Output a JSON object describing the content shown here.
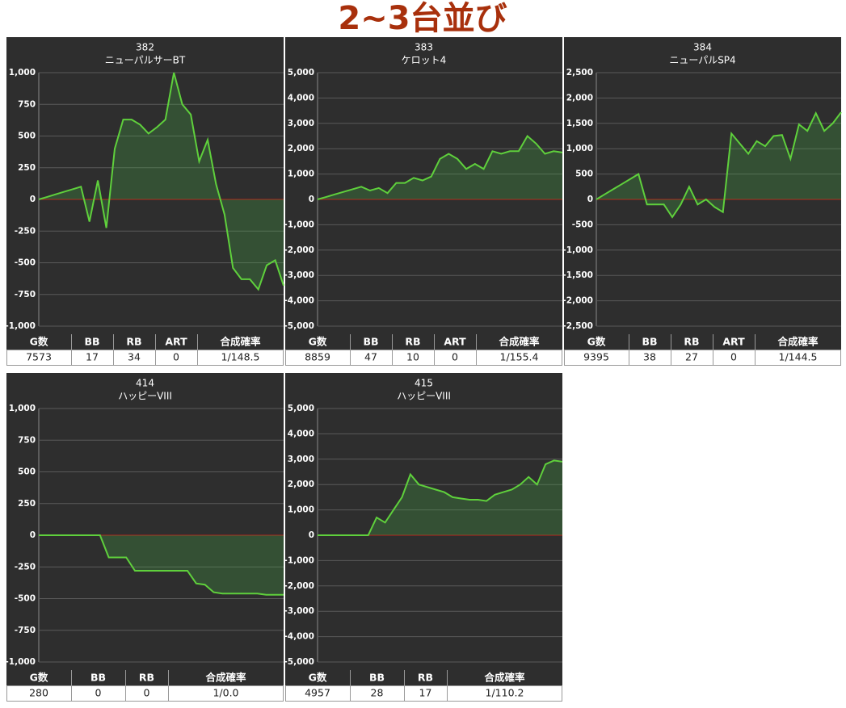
{
  "title": "2~3台並び",
  "chart_data": [
    {
      "type": "line",
      "title": "382",
      "subtitle": "ニューパルサーBT",
      "color": "#5fd03c",
      "values": [
        0,
        20,
        40,
        60,
        80,
        100,
        -175,
        150,
        -225,
        400,
        630,
        630,
        590,
        520,
        570,
        630,
        1000,
        750,
        670,
        300,
        470,
        120,
        -120,
        -540,
        -630,
        -630,
        -710,
        -520,
        -480,
        -680
      ],
      "ylim": [
        -1000,
        1000
      ],
      "yticks": [
        {
          "value": -1000,
          "label": "-1,000"
        },
        -750,
        -500,
        -250,
        0,
        250,
        500,
        750,
        {
          "value": 1000,
          "label": "1,000"
        }
      ]
    },
    {
      "type": "line",
      "title": "383",
      "subtitle": "ケロット4",
      "color": "#5fd03c",
      "values": [
        0,
        100,
        200,
        300,
        400,
        500,
        350,
        450,
        250,
        650,
        650,
        850,
        750,
        900,
        1600,
        1800,
        1600,
        1200,
        1400,
        1200,
        1900,
        1800,
        1900,
        1900,
        2500,
        2200,
        1800,
        1900,
        1850
      ],
      "ylim": [
        -5000,
        5000
      ],
      "yticks": [
        {
          "value": -5000,
          "label": "-5,000"
        },
        {
          "value": -4000,
          "label": "-4,000"
        },
        {
          "value": -3000,
          "label": "-3,000"
        },
        {
          "value": -2000,
          "label": "-2,000"
        },
        {
          "value": -1000,
          "label": "-1,000"
        },
        0,
        {
          "value": 1000,
          "label": "1,000"
        },
        {
          "value": 2000,
          "label": "2,000"
        },
        {
          "value": 3000,
          "label": "3,000"
        },
        {
          "value": 4000,
          "label": "4,000"
        },
        {
          "value": 5000,
          "label": "5,000"
        }
      ]
    },
    {
      "type": "line",
      "title": "384",
      "subtitle": "ニューパルSP4",
      "color": "#5fd03c",
      "values": [
        0,
        100,
        200,
        300,
        400,
        500,
        -100,
        -100,
        -100,
        -350,
        -100,
        250,
        -100,
        0,
        -150,
        -250,
        1300,
        1100,
        900,
        1150,
        1050,
        1250,
        1270,
        800,
        1480,
        1350,
        1700,
        1350,
        1500,
        1720
      ],
      "ylim": [
        -2500,
        2500
      ],
      "yticks": [
        {
          "value": -2500,
          "label": "-2,500"
        },
        {
          "value": -2000,
          "label": "-2,000"
        },
        {
          "value": -1500,
          "label": "-1,500"
        },
        {
          "value": -1000,
          "label": "-1,000"
        },
        -500,
        0,
        500,
        {
          "value": 1000,
          "label": "1,000"
        },
        {
          "value": 1500,
          "label": "1,500"
        },
        {
          "value": 2000,
          "label": "2,000"
        },
        {
          "value": 2500,
          "label": "2,500"
        }
      ]
    },
    {
      "type": "line",
      "title": "414",
      "subtitle": "ハッピーVIII",
      "color": "#5fd03c",
      "values": [
        0,
        0,
        0,
        0,
        0,
        0,
        0,
        0,
        -175,
        -175,
        -175,
        -280,
        -280,
        -280,
        -280,
        -280,
        -280,
        -280,
        -380,
        -390,
        -450,
        -460,
        -460,
        -460,
        -460,
        -460,
        -470,
        -470,
        -470
      ],
      "ylim": [
        -1000,
        1000
      ],
      "yticks": [
        {
          "value": -1000,
          "label": "-1,000"
        },
        -750,
        -500,
        -250,
        0,
        250,
        500,
        750,
        {
          "value": 1000,
          "label": "1,000"
        }
      ]
    },
    {
      "type": "line",
      "title": "415",
      "subtitle": "ハッピーVIII",
      "color": "#5fd03c",
      "values": [
        0,
        0,
        0,
        0,
        0,
        0,
        0,
        700,
        500,
        1000,
        1500,
        2400,
        2000,
        1900,
        1800,
        1700,
        1500,
        1450,
        1400,
        1400,
        1350,
        1600,
        1700,
        1800,
        2000,
        2300,
        2000,
        2800,
        2950,
        2900
      ],
      "ylim": [
        -5000,
        5000
      ],
      "yticks": [
        {
          "value": -5000,
          "label": "-5,000"
        },
        {
          "value": -4000,
          "label": "-4,000"
        },
        {
          "value": -3000,
          "label": "-3,000"
        },
        {
          "value": -2000,
          "label": "-2,000"
        },
        {
          "value": -1000,
          "label": "-1,000"
        },
        0,
        {
          "value": 1000,
          "label": "1,000"
        },
        {
          "value": 2000,
          "label": "2,000"
        },
        {
          "value": 3000,
          "label": "3,000"
        },
        {
          "value": 4000,
          "label": "4,000"
        },
        {
          "value": 5000,
          "label": "5,000"
        }
      ]
    }
  ],
  "tables": [
    {
      "headers": [
        "G数",
        "BB",
        "RB",
        "ART",
        "合成確率"
      ],
      "rows": [
        [
          7573,
          17,
          34,
          0,
          "1/148.5"
        ]
      ]
    },
    {
      "headers": [
        "G数",
        "BB",
        "RB",
        "ART",
        "合成確率"
      ],
      "rows": [
        [
          8859,
          47,
          10,
          0,
          "1/155.4"
        ]
      ]
    },
    {
      "headers": [
        "G数",
        "BB",
        "RB",
        "ART",
        "合成確率"
      ],
      "rows": [
        [
          9395,
          38,
          27,
          0,
          "1/144.5"
        ]
      ]
    },
    {
      "headers": [
        "G数",
        "BB",
        "RB",
        "合成確率"
      ],
      "rows": [
        [
          280,
          0,
          0,
          "1/0.0"
        ]
      ]
    },
    {
      "headers": [
        "G数",
        "BB",
        "RB",
        "合成確率"
      ],
      "rows": [
        [
          4957,
          28,
          17,
          "1/110.2"
        ]
      ]
    }
  ]
}
